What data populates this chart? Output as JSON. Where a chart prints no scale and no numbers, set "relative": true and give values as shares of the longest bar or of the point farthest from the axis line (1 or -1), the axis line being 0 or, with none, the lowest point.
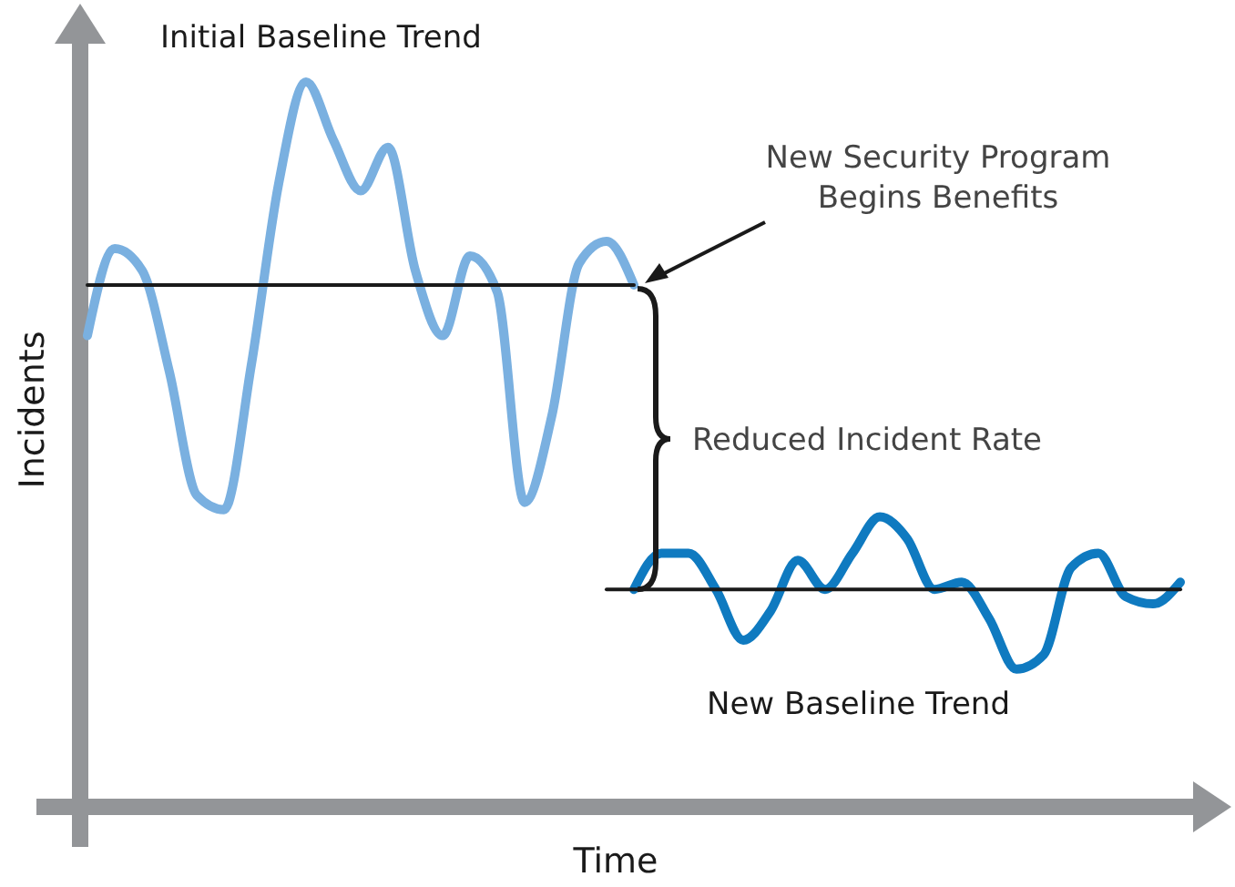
{
  "chart_data": {
    "type": "line",
    "xlabel": "Time",
    "ylabel": "Incidents",
    "relative": true,
    "legend": false,
    "line_style": "solid",
    "categories": [
      null,
      null,
      null,
      null,
      null,
      null,
      null,
      null,
      null,
      null,
      null,
      null,
      null,
      null,
      null,
      null,
      null,
      null,
      null,
      null,
      null,
      null,
      null,
      null,
      null,
      null,
      null,
      null,
      null,
      null,
      null,
      null,
      null,
      null,
      null,
      null,
      null,
      null,
      null,
      null,
      null
    ],
    "series": [
      {
        "name": "Initial Baseline Trend",
        "color": "#7ab0e0",
        "values": [
          0.65,
          0.77,
          0.74,
          0.6,
          0.43,
          0.41,
          0.61,
          0.86,
          1.0,
          0.92,
          0.85,
          0.91,
          0.74,
          0.65,
          0.76,
          0.71,
          0.42,
          0.54,
          0.75,
          0.78,
          0.72,
          null,
          null,
          null,
          null,
          null,
          null,
          null,
          null,
          null,
          null,
          null,
          null,
          null,
          null,
          null,
          null,
          null,
          null,
          null,
          null
        ]
      },
      {
        "name": "New Baseline Trend",
        "color": "#0f7ac0",
        "values": [
          null,
          null,
          null,
          null,
          null,
          null,
          null,
          null,
          null,
          null,
          null,
          null,
          null,
          null,
          null,
          null,
          null,
          null,
          null,
          null,
          0.3,
          0.35,
          0.35,
          0.3,
          0.23,
          0.27,
          0.34,
          0.3,
          0.35,
          0.4,
          0.37,
          0.3,
          0.31,
          0.26,
          0.19,
          0.21,
          0.33,
          0.35,
          0.29,
          0.28,
          0.31
        ]
      },
      {
        "color": "#1a1a1a",
        "type": "line",
        "values": [
          0.72,
          null,
          null,
          null,
          null,
          null,
          null,
          null,
          null,
          null,
          null,
          null,
          null,
          null,
          null,
          null,
          null,
          null,
          null,
          null,
          0.72,
          null,
          null,
          null,
          null,
          null,
          null,
          null,
          null,
          null,
          null,
          null,
          null,
          null,
          null,
          null,
          null,
          null,
          null,
          null,
          null
        ]
      },
      {
        "color": "#1a1a1a",
        "type": "line",
        "values": [
          null,
          null,
          null,
          null,
          null,
          null,
          null,
          null,
          null,
          null,
          null,
          null,
          null,
          null,
          null,
          null,
          null,
          null,
          null,
          0.3,
          null,
          null,
          null,
          null,
          null,
          null,
          null,
          null,
          null,
          null,
          null,
          null,
          null,
          null,
          null,
          null,
          null,
          null,
          null,
          null,
          0.3
        ]
      }
    ],
    "annotations": [
      "New Security Program\nBegins Benefits",
      "Reduced Incident Rate"
    ]
  }
}
